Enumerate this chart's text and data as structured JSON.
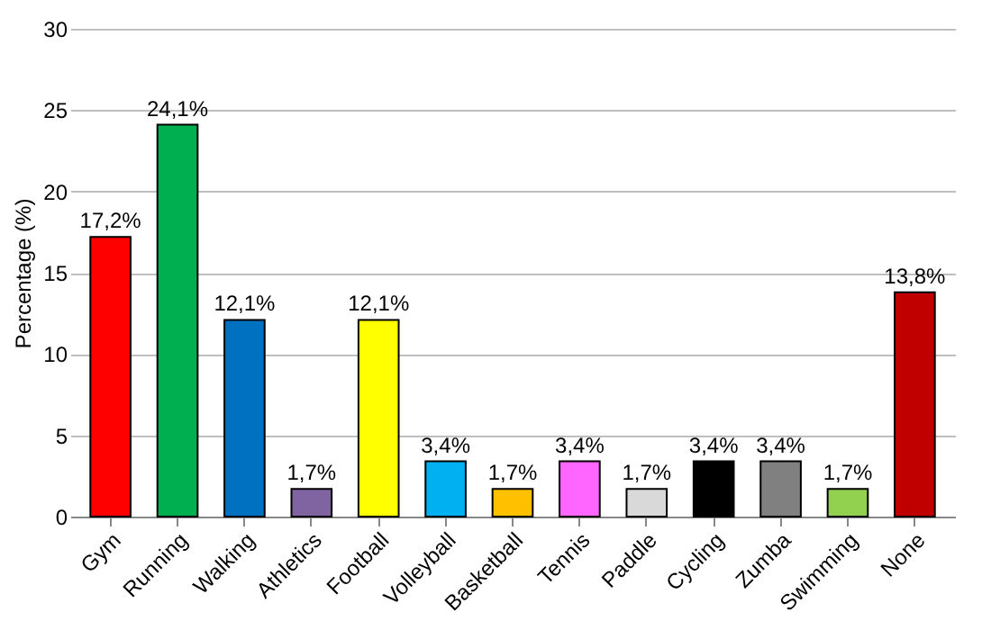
{
  "chart_data": {
    "type": "bar",
    "ylabel": "Percentage (%)",
    "categories": [
      "Gym",
      "Running",
      "Walking",
      "Athletics",
      "Football",
      "Volleyball",
      "Basketball",
      "Tennis",
      "Paddle",
      "Cycling",
      "Zumba",
      "Swimming",
      "None"
    ],
    "values": [
      17.2,
      24.1,
      12.1,
      1.7,
      12.1,
      3.4,
      1.7,
      3.4,
      1.7,
      3.4,
      3.4,
      1.7,
      13.8
    ],
    "colors": [
      "#ff0000",
      "#00b050",
      "#0070c0",
      "#8064a2",
      "#ffff00",
      "#00b0f0",
      "#ffc000",
      "#ff66ff",
      "#d9d9d9",
      "#000000",
      "#808080",
      "#92d050",
      "#c00000"
    ],
    "value_labels": [
      "17,2%",
      "24,1%",
      "12,1%",
      "1,7%",
      "12,1%",
      "3,4%",
      "1,7%",
      "3,4%",
      "1,7%",
      "3,4%",
      "3,4%",
      "1,7%",
      "13,8%"
    ],
    "ylim": [
      0,
      30
    ],
    "yticks": [
      0,
      5,
      10,
      15,
      20,
      25,
      30
    ],
    "grid": "y"
  }
}
